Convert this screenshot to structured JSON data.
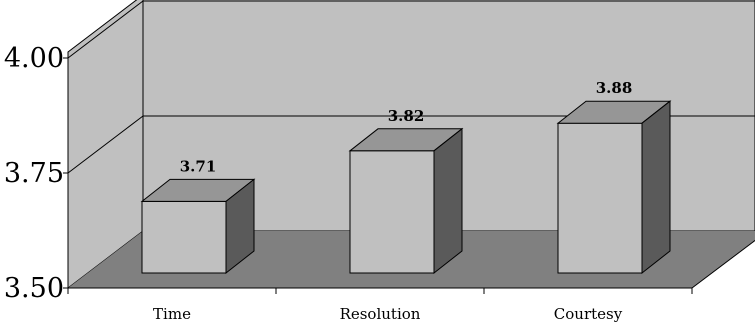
{
  "chart_data": {
    "type": "bar",
    "style": "3d",
    "categories": [
      "Time",
      "Resolution",
      "Courtesy"
    ],
    "values": [
      3.71,
      3.82,
      3.88
    ],
    "data_labels": [
      "3.71",
      "3.82",
      "3.88"
    ],
    "ylim": [
      3.5,
      4.0
    ],
    "yticks": [
      3.5,
      3.75,
      4.0
    ],
    "ytick_labels": [
      "3.50",
      "3.75",
      "4.00"
    ],
    "grid": true,
    "legend": "none",
    "colors": {
      "wall": "#c0c0c0",
      "floor": "#808080",
      "bar_front": "#c0c0c0",
      "bar_top": "#969696",
      "bar_side": "#5a5a5a",
      "line": "#000000"
    }
  }
}
